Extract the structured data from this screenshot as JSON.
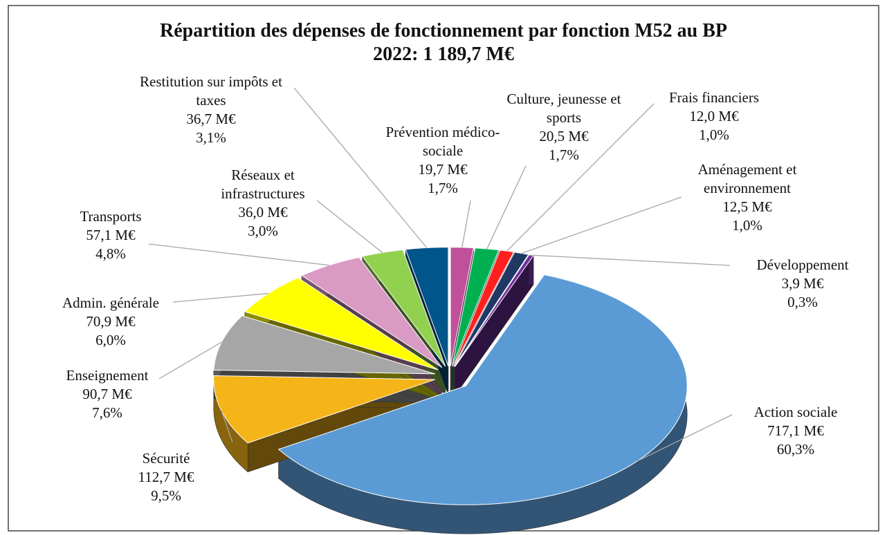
{
  "chart_data": {
    "type": "pie3d",
    "title": "Répartition des dépenses de fonctionnement par fonction M52 au BP 2022: 1 189,7 M€",
    "categories": [
      "Prévention médico-sociale",
      "Culture, jeunesse et sports",
      "Frais financiers",
      "Aménagement et environnement",
      "Développement",
      "Action sociale",
      "Sécurité",
      "Enseignement",
      "Admin. générale",
      "Transports",
      "Réseaux et infrastructures",
      "Restitution sur impôts et taxes"
    ],
    "values": [
      19.7,
      20.5,
      12.0,
      12.5,
      3.9,
      717.1,
      112.7,
      90.7,
      70.9,
      57.1,
      36.0,
      36.7
    ],
    "value_labels": [
      "19,7 M€",
      "20,5 M€",
      "12,0 M€",
      "12,5 M€",
      "3,9 M€",
      "717,1 M€",
      "112,7 M€",
      "90,7 M€",
      "70,9 M€",
      "57,1 M€",
      "36,0 M€",
      "36,7 M€"
    ],
    "percents": [
      1.7,
      1.7,
      1.0,
      1.0,
      0.3,
      60.3,
      9.5,
      7.6,
      6.0,
      4.8,
      3.0,
      3.1
    ],
    "percent_labels": [
      "1,7%",
      "1,7%",
      "1,0%",
      "1,0%",
      "0,3%",
      "60,3%",
      "9,5%",
      "7,6%",
      "6,0%",
      "4,8%",
      "3,0%",
      "3,1%"
    ],
    "colors": [
      "#c0509a",
      "#00b050",
      "#ff1f1f",
      "#1f3864",
      "#7030a0",
      "#5b9bd5",
      "#f5b518",
      "#a6a6a6",
      "#ffff00",
      "#d99ac4",
      "#92d050",
      "#00558a"
    ]
  }
}
